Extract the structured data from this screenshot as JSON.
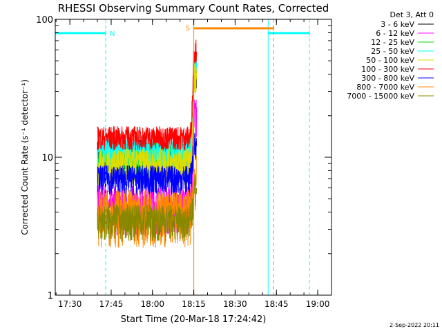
{
  "chart_data": {
    "type": "line",
    "title": "RHESSI Observing Summary Count Rates, Corrected",
    "xlabel": "Start Time (20-Mar-18 17:24:42)",
    "ylabel": "Corrected Count Rate (s⁻¹ detector⁻¹)",
    "y_scale": "log",
    "ylim": [
      1,
      100
    ],
    "xlim": [
      "17:24:42",
      "19:05:00"
    ],
    "x_tick_labels": [
      "17:30",
      "17:45",
      "18:00",
      "18:15",
      "18:30",
      "18:45",
      "19:00"
    ],
    "y_tick_labels": [
      "1",
      "10",
      "100"
    ],
    "legend_header": "Det 3, Att 0",
    "legend_position": "top-right, outside plot",
    "series": [
      {
        "name": "3 - 6 keV",
        "color": "#000000",
        "level": 10,
        "spread": 0.35
      },
      {
        "name": "6 - 12 keV",
        "color": "#ff00ff",
        "level": 4.5,
        "spread": 0.4
      },
      {
        "name": "12 - 25 keV",
        "color": "#00dd00",
        "level": 10,
        "spread": 0.3
      },
      {
        "name": "25 - 50 keV",
        "color": "#00ffff",
        "level": 11,
        "spread": 0.3
      },
      {
        "name": "50 - 100 keV",
        "color": "#dddd00",
        "level": 9,
        "spread": 0.3
      },
      {
        "name": "100 - 300 keV",
        "color": "#ff0000",
        "level": 14,
        "spread": 0.2
      },
      {
        "name": "300 - 800 keV",
        "color": "#0000ff",
        "level": 7,
        "spread": 0.25
      },
      {
        "name": "800 - 7000 keV",
        "color": "#ff8800",
        "level": 4,
        "spread": 0.45
      },
      {
        "name": "7000 - 15000 keV",
        "color": "#888800",
        "level": 3.5,
        "spread": 0.3
      }
    ],
    "data_window": {
      "start": "17:40:00",
      "end": "18:16:00"
    },
    "flare_rise": {
      "start": "18:13:30",
      "peak_time": "18:15:00",
      "peak_value": 60
    },
    "markers": [
      {
        "type": "night",
        "label": "N",
        "start": "17:24:42",
        "end": "17:43:00",
        "color": "#00ffff"
      },
      {
        "type": "night",
        "label": "",
        "start": "18:42:00",
        "end": "18:57:00",
        "color": "#00ffff"
      },
      {
        "type": "saa",
        "label": "S",
        "start": "18:15:00",
        "end": "18:44:00",
        "color": "#ff8800"
      }
    ]
  },
  "footer": {
    "date_stamp": "2-Sep-2022 20:11"
  }
}
